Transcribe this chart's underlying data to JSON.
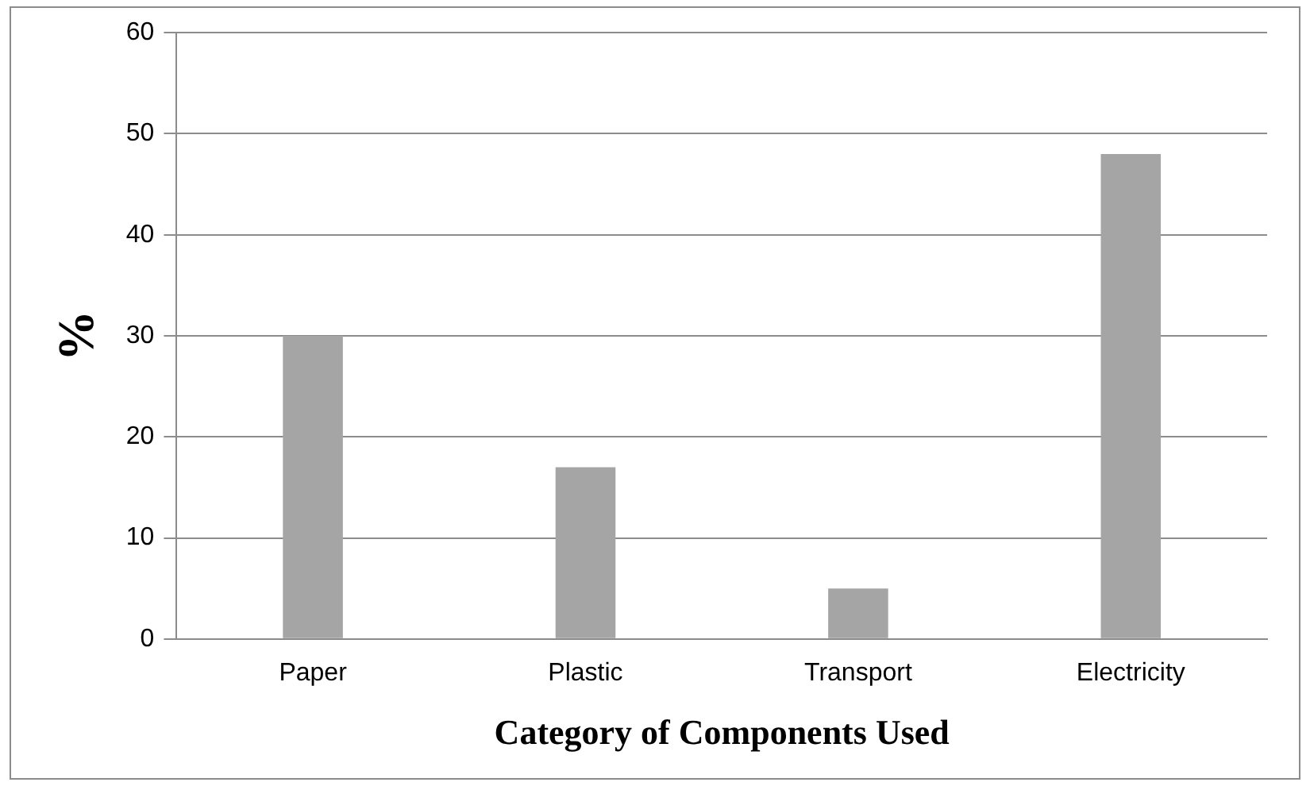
{
  "chart_data": {
    "type": "bar",
    "xlabel": "Category of Components Used",
    "ylabel": "%",
    "categories": [
      "Paper",
      "Plastic",
      "Transport",
      "Electricity"
    ],
    "series": [
      {
        "color": "#a5a5a5",
        "values": [
          30,
          17,
          5,
          48
        ]
      }
    ],
    "ylim": [
      0,
      60
    ],
    "yticks": [
      0,
      10,
      20,
      30,
      40,
      50,
      60
    ],
    "grid": "y",
    "legend": false
  }
}
